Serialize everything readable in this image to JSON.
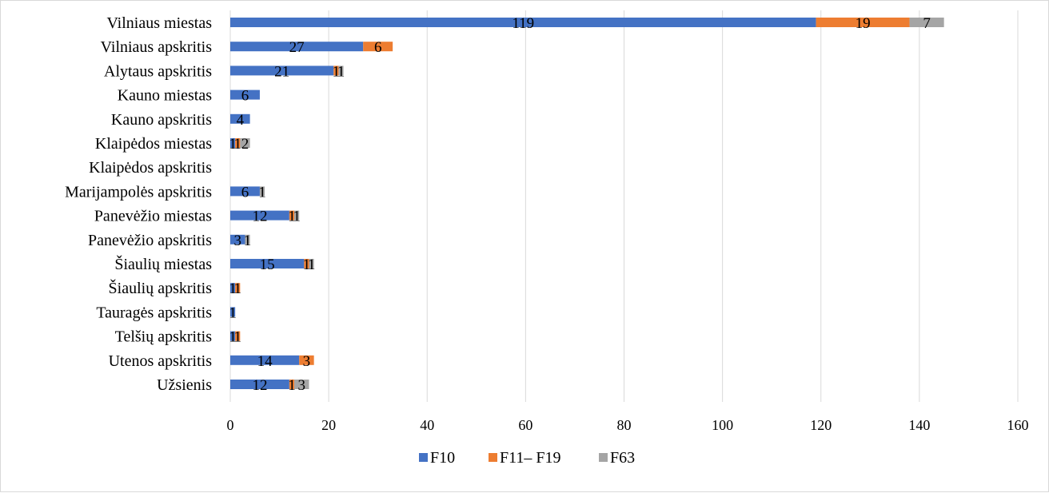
{
  "chart_data": {
    "type": "bar",
    "orientation": "horizontal",
    "stacked": true,
    "categories": [
      "Vilniaus miestas",
      "Vilniaus apskritis",
      "Alytaus apskritis",
      "Kauno miestas",
      "Kauno apskritis",
      "Klaipėdos miestas",
      "Klaipėdos apskritis",
      "Marijampolės apskritis",
      "Panevėžio miestas",
      "Panevėžio apskritis",
      "Šiaulių miestas",
      "Šiaulių apskritis",
      "Tauragės apskritis",
      "Telšių apskritis",
      "Utenos apskritis ",
      "Užsienis"
    ],
    "series": [
      {
        "name": "F10",
        "color": "#4472C4",
        "values": [
          119,
          27,
          21,
          6,
          4,
          1,
          0,
          6,
          12,
          3,
          15,
          1,
          1,
          1,
          14,
          12
        ]
      },
      {
        "name": "F11– F19",
        "color": "#ED7D31",
        "values": [
          19,
          6,
          1,
          0,
          0,
          1,
          0,
          0,
          1,
          0,
          1,
          1,
          0,
          1,
          3,
          1
        ]
      },
      {
        "name": "F63",
        "color": "#A5A5A5",
        "values": [
          7,
          0,
          1,
          0,
          0,
          2,
          0,
          1,
          1,
          1,
          1,
          0,
          0,
          0,
          0,
          3
        ]
      }
    ],
    "xlim": [
      0,
      160
    ],
    "xticks": [
      0,
      20,
      40,
      60,
      80,
      100,
      120,
      140,
      160
    ],
    "grid": "vertical",
    "legend": "bottom",
    "title": "",
    "xlabel": "",
    "ylabel": ""
  }
}
